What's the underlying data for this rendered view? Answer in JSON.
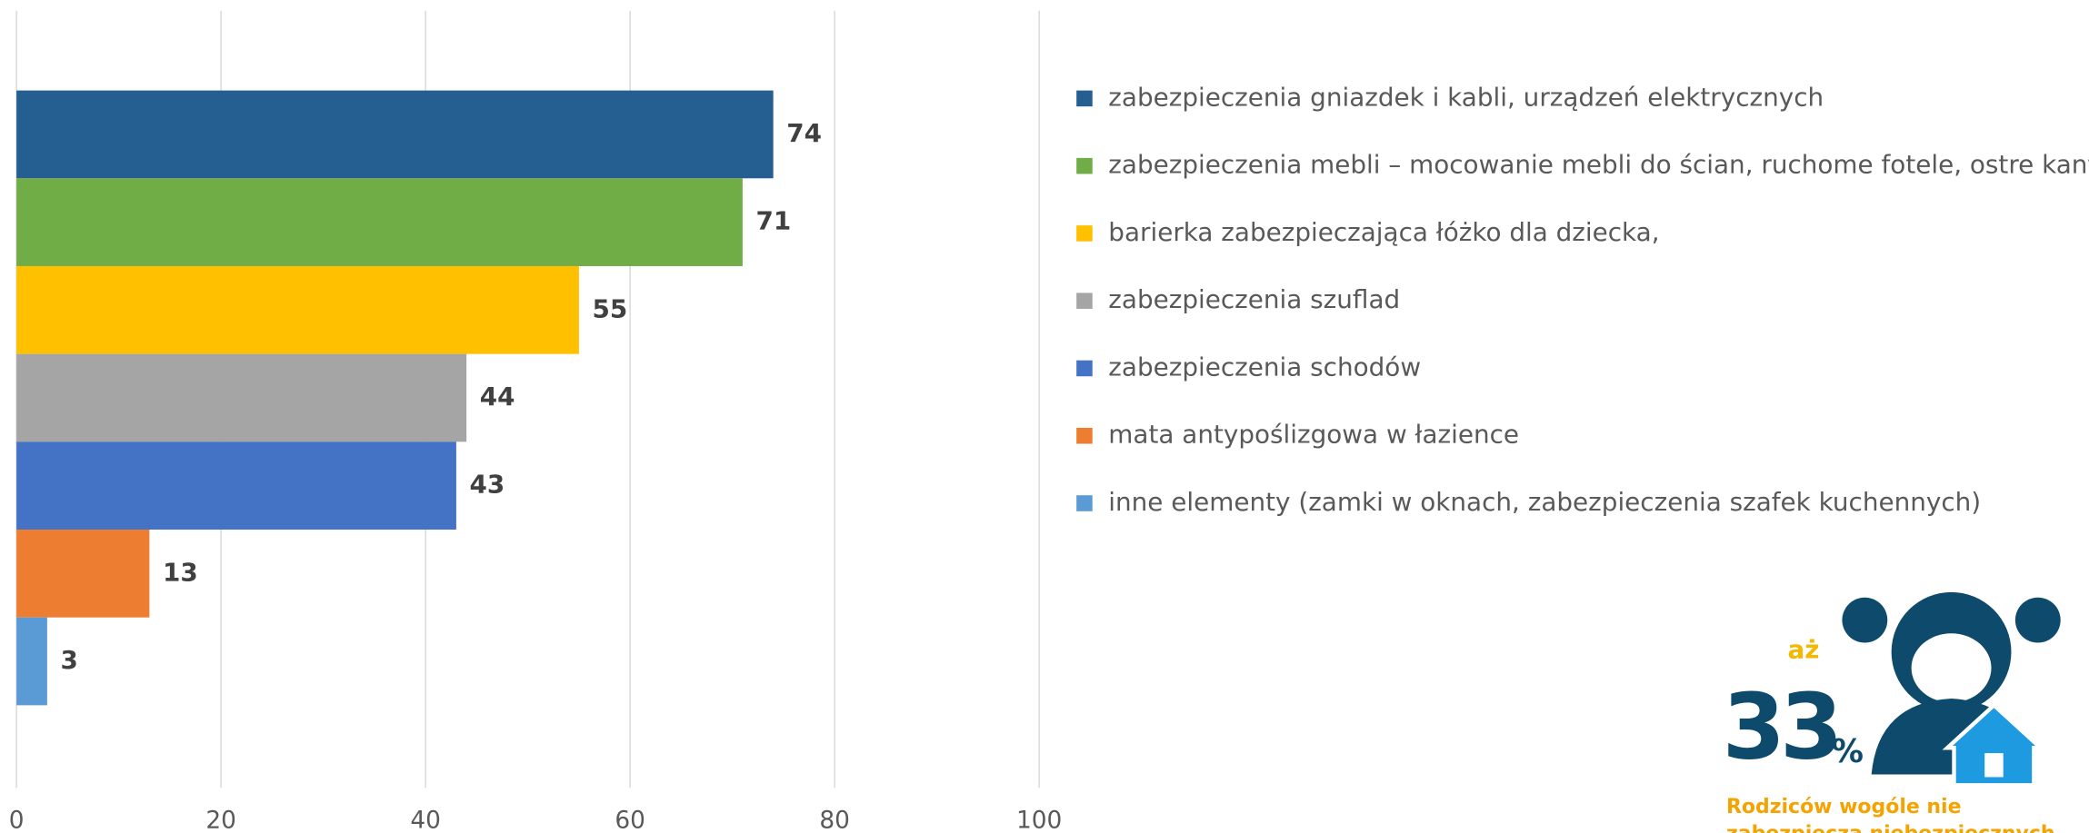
{
  "chart_data": {
    "type": "barh",
    "categories": [
      "zabezpieczenia gniazdek i kabli, urządzeń elektrycznych",
      "zabezpieczenia mebli – mocowanie mebli do ścian, ruchome fotele, ostre kanty",
      "barierka zabezpieczająca łóżko dla dziecka,",
      "zabezpieczenia szuflad",
      "zabezpieczenia schodów",
      "mata antypoślizgowa w łazience",
      "inne elementy (zamki w oknach, zabezpieczenia szafek kuchennych)"
    ],
    "values": [
      74,
      71,
      55,
      44,
      43,
      13,
      3
    ],
    "colors": [
      "#255e91",
      "#70ad47",
      "#ffc000",
      "#a5a5a5",
      "#4472c4",
      "#ed7d31",
      "#5b9bd5"
    ],
    "xlim": [
      0,
      100
    ],
    "xticks": [
      0,
      20,
      40,
      60,
      80,
      100
    ],
    "grid": true,
    "legend": "right"
  },
  "highlight": {
    "prefix": "aż",
    "number": "33",
    "unit": "%",
    "caption": [
      "Rodziców wogóle nie",
      "zabezpiecza niebezpiecznych"
    ]
  }
}
